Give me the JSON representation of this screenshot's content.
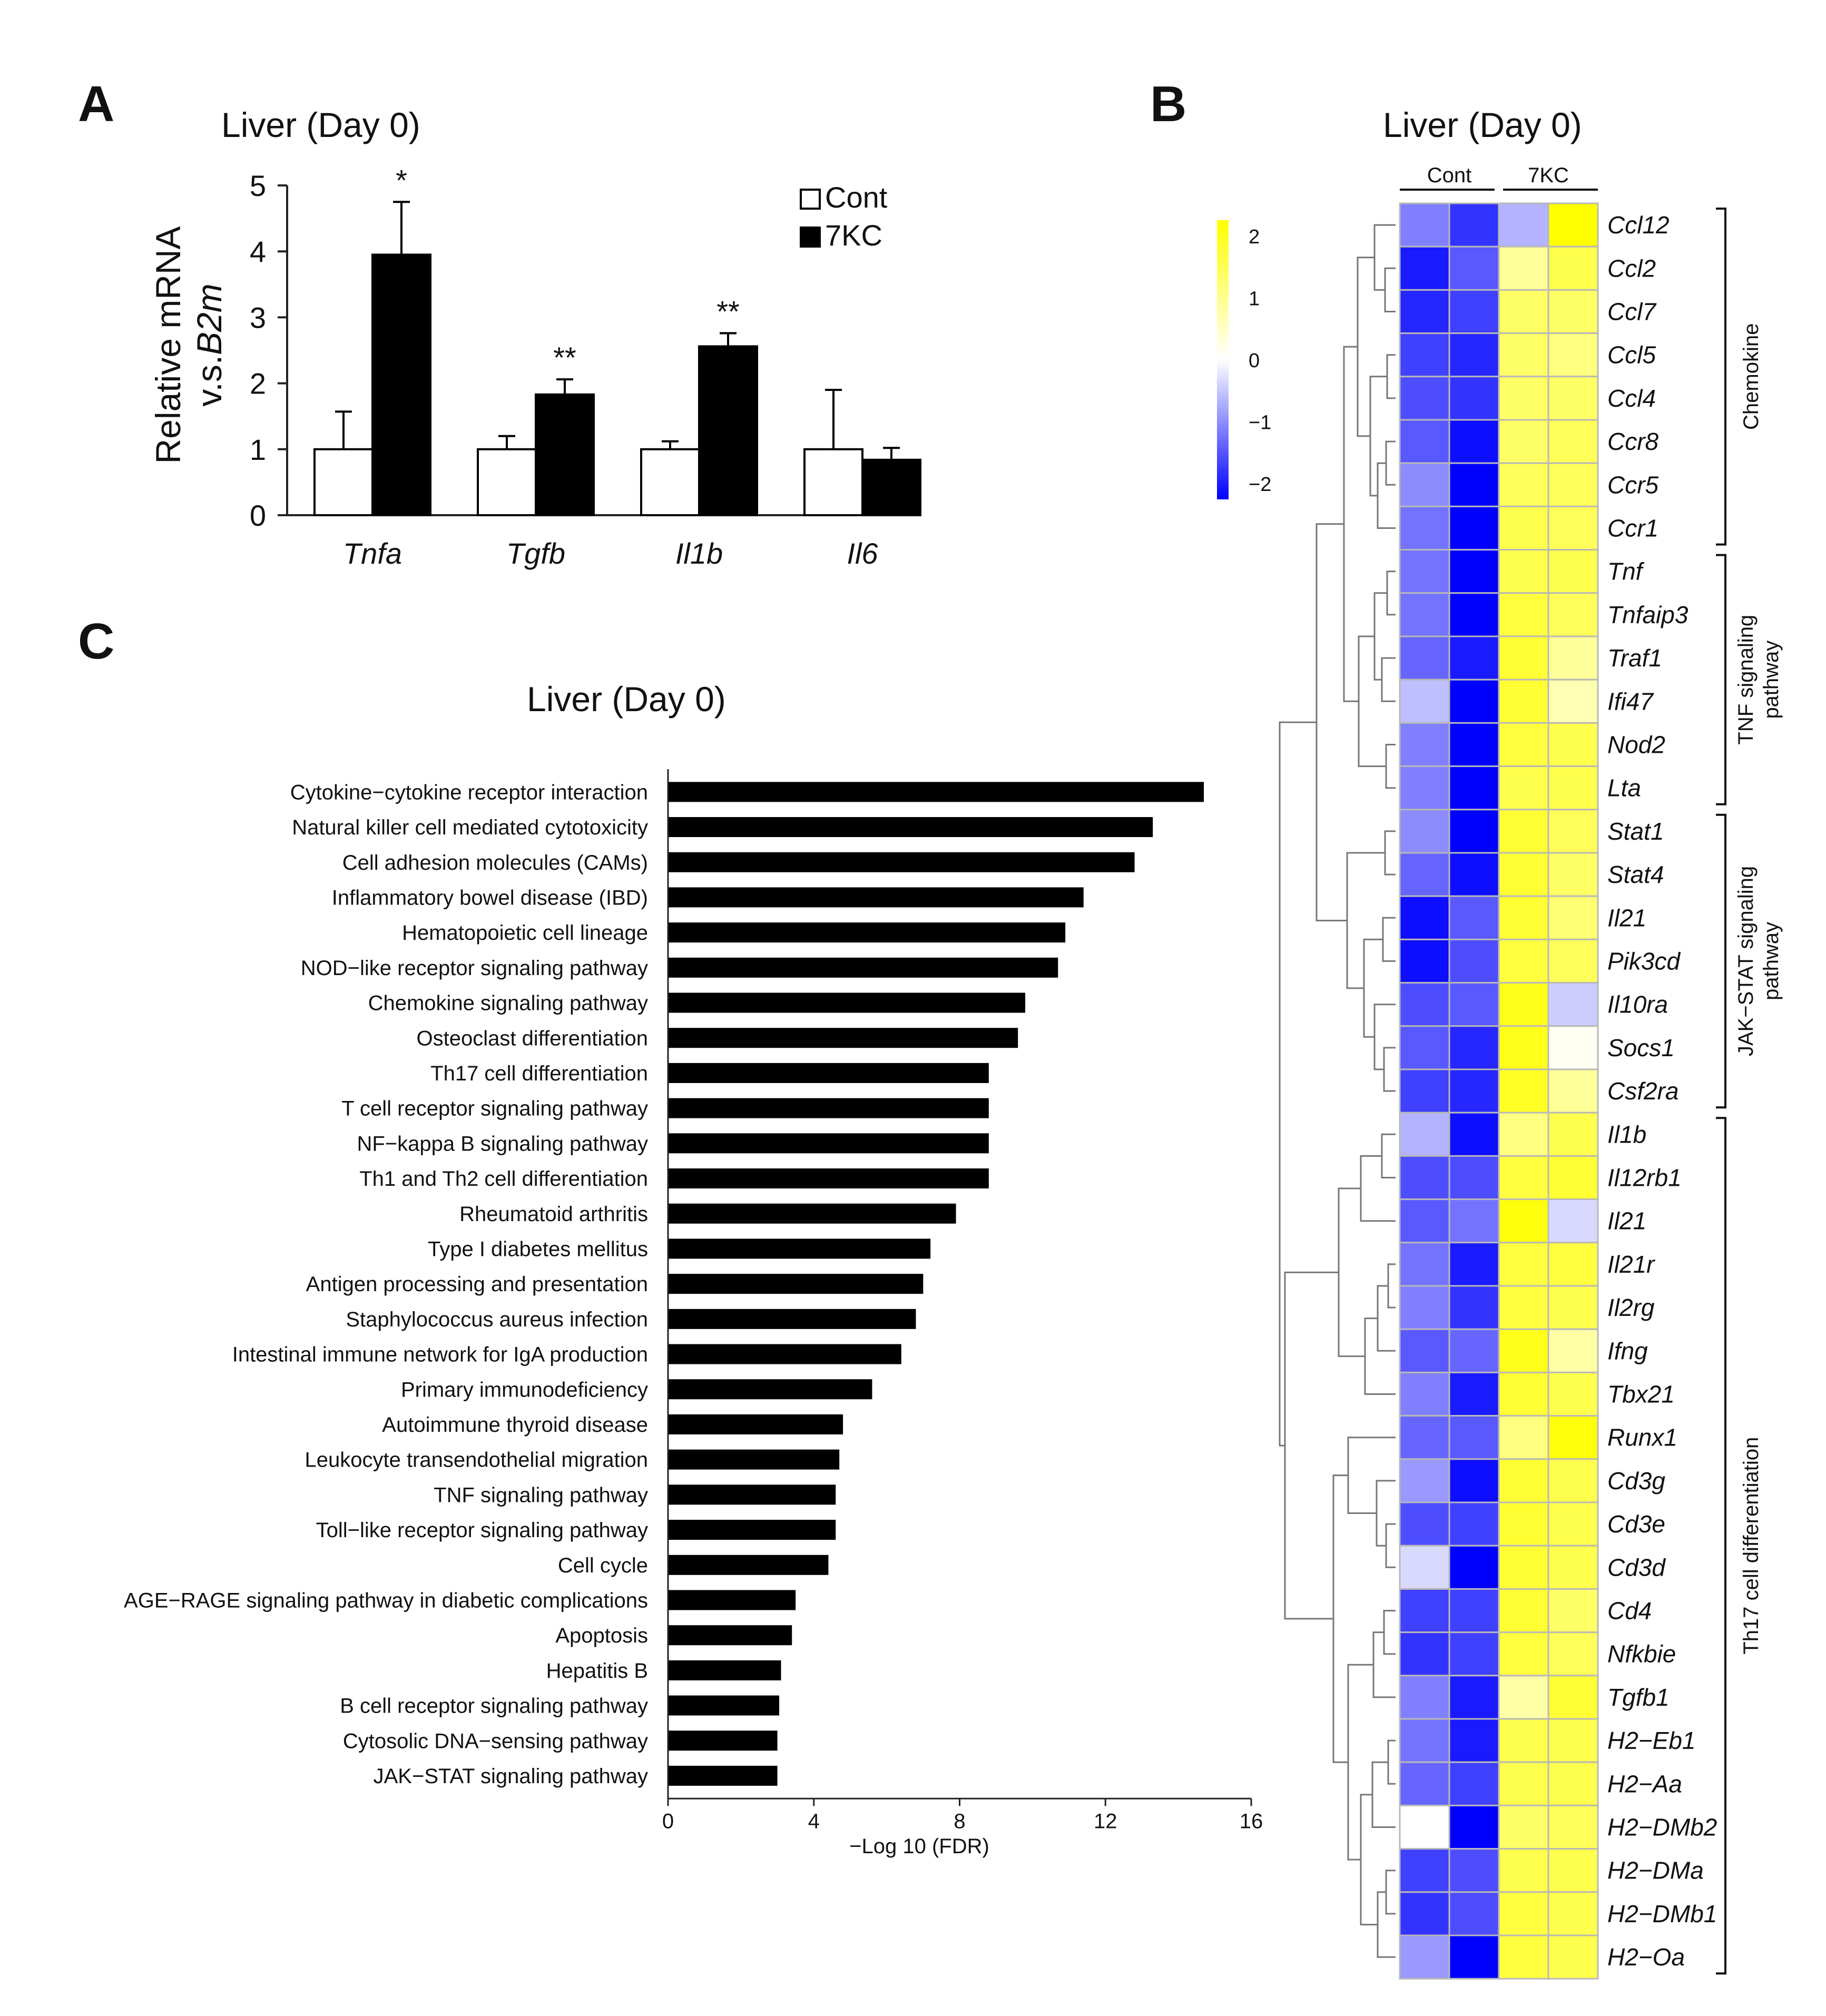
{
  "chart_data": [
    {
      "id": "A",
      "panel_label": "A",
      "type": "bar",
      "title": "Liver (Day 0)",
      "ylabel_line1": "Relative mRNA",
      "ylabel_line2": "v.s.",
      "ylabel_italic": "B2m",
      "ylim": [
        0,
        5
      ],
      "yticks": [
        "0",
        "1",
        "2",
        "3",
        "4",
        "5"
      ],
      "categories": [
        "Tnfa",
        "Tgfb",
        "Il1b",
        "Il6"
      ],
      "series": [
        {
          "name": "Cont",
          "color": "#ffffff",
          "values": [
            1.0,
            1.0,
            1.0,
            1.0
          ],
          "errors": [
            0.57,
            0.2,
            0.12,
            0.9
          ]
        },
        {
          "name": "7KC",
          "color": "#000000",
          "values": [
            3.95,
            1.83,
            2.56,
            0.84
          ],
          "errors": [
            0.8,
            0.23,
            0.2,
            0.18
          ]
        }
      ],
      "significance": [
        "*",
        "**",
        "**",
        ""
      ]
    },
    {
      "id": "B",
      "panel_label": "B",
      "type": "heatmap",
      "title": "Liver (Day 0)",
      "columns": [
        "Cont",
        "Cont",
        "7KC",
        "7KC"
      ],
      "group_labels": [
        "Cont",
        "7KC"
      ],
      "colorbar_ticks": [
        "2",
        "1",
        "0",
        "−1",
        "−2"
      ],
      "colorbar_colors": [
        "#ffff00",
        "#0000ff"
      ],
      "genes": [
        "Ccl12",
        "Ccl2",
        "Ccl7",
        "Ccl5",
        "Ccl4",
        "Ccr8",
        "Ccr5",
        "Ccr1",
        "Tnf",
        "Tnfaip3",
        "Traf1",
        "Ifi47",
        "Nod2",
        "Lta",
        "Stat1",
        "Stat4",
        "Il21",
        "Pik3cd",
        "Il10ra",
        "Socs1",
        "Csf2ra",
        "Il1b",
        "Il12rb1",
        "Il21",
        "Il21r",
        "Il2rg",
        "Ifng",
        "Tbx21",
        "Runx1",
        "Cd3g",
        "Cd3e",
        "Cd3d",
        "Cd4",
        "Nfkbie",
        "Tgfb1",
        "H2−Eb1",
        "H2−Aa",
        "H2−DMb2",
        "H2−DMa",
        "H2−DMb1",
        "H2−Oa"
      ],
      "values": [
        [
          -1.0,
          -1.6,
          -0.6,
          2.0
        ],
        [
          -1.8,
          -1.3,
          0.8,
          1.4
        ],
        [
          -1.7,
          -1.5,
          1.2,
          1.2
        ],
        [
          -1.5,
          -1.7,
          1.2,
          1.0
        ],
        [
          -1.4,
          -1.6,
          1.2,
          1.2
        ],
        [
          -1.3,
          -1.9,
          1.2,
          1.3
        ],
        [
          -0.9,
          -2.0,
          1.3,
          1.3
        ],
        [
          -1.1,
          -2.0,
          1.4,
          1.3
        ],
        [
          -1.1,
          -2.0,
          1.4,
          1.4
        ],
        [
          -1.1,
          -2.0,
          1.5,
          1.3
        ],
        [
          -1.2,
          -1.8,
          1.6,
          0.8
        ],
        [
          -0.5,
          -2.0,
          1.6,
          0.6
        ],
        [
          -1.0,
          -2.0,
          1.5,
          1.4
        ],
        [
          -1.0,
          -2.0,
          1.4,
          1.4
        ],
        [
          -0.9,
          -2.0,
          1.6,
          1.3
        ],
        [
          -1.2,
          -1.9,
          1.6,
          1.2
        ],
        [
          -1.9,
          -1.3,
          1.6,
          1.1
        ],
        [
          -1.9,
          -1.4,
          1.5,
          1.3
        ],
        [
          -1.4,
          -1.3,
          1.8,
          -0.4
        ],
        [
          -1.3,
          -1.7,
          1.8,
          0.1
        ],
        [
          -1.5,
          -1.7,
          1.7,
          0.8
        ],
        [
          -0.6,
          -1.9,
          1.0,
          1.4
        ],
        [
          -1.4,
          -1.4,
          1.5,
          1.6
        ],
        [
          -1.3,
          -1.1,
          1.9,
          -0.3
        ],
        [
          -1.1,
          -1.8,
          1.5,
          1.5
        ],
        [
          -1.0,
          -1.6,
          1.5,
          1.4
        ],
        [
          -1.3,
          -1.2,
          1.8,
          0.7
        ],
        [
          -1.0,
          -1.8,
          1.6,
          1.4
        ],
        [
          -1.2,
          -1.3,
          1.0,
          1.9
        ],
        [
          -0.8,
          -1.9,
          1.6,
          1.4
        ],
        [
          -1.4,
          -1.5,
          1.6,
          1.4
        ],
        [
          -0.3,
          -2.0,
          1.6,
          1.4
        ],
        [
          -1.5,
          -1.5,
          1.6,
          1.2
        ],
        [
          -1.6,
          -1.5,
          1.5,
          1.3
        ],
        [
          -1.0,
          -1.8,
          0.7,
          1.6
        ],
        [
          -1.1,
          -1.8,
          1.4,
          1.4
        ],
        [
          -1.2,
          -1.5,
          1.4,
          1.4
        ],
        [
          0.0,
          -2.0,
          1.2,
          1.3
        ],
        [
          -1.5,
          -1.4,
          1.4,
          1.4
        ],
        [
          -1.6,
          -1.4,
          1.5,
          1.4
        ],
        [
          -0.8,
          -2.0,
          1.5,
          1.4
        ]
      ],
      "pathway_groups": [
        {
          "label": "Chemokine",
          "start": 0,
          "end": 7
        },
        {
          "label_line1": "TNF signaling",
          "label_line2": "pathway",
          "start": 8,
          "end": 13
        },
        {
          "label_line1": "JAK−STAT signaling",
          "label_line2": "pathway",
          "start": 14,
          "end": 20
        },
        {
          "label": "Th17 cell differentiation",
          "start": 21,
          "end": 40
        }
      ]
    },
    {
      "id": "C",
      "panel_label": "C",
      "type": "bar",
      "orientation": "horizontal",
      "title": "Liver (Day 0)",
      "xlabel": "−Log 10 (FDR)",
      "xlim": [
        0,
        16
      ],
      "xticks": [
        "0",
        "4",
        "8",
        "12",
        "16"
      ],
      "categories": [
        "Cytokine−cytokine receptor interaction",
        "Natural killer cell mediated cytotoxicity",
        "Cell adhesion molecules (CAMs)",
        "Inflammatory bowel disease (IBD)",
        "Hematopoietic cell lineage",
        "NOD−like receptor signaling pathway",
        "Chemokine signaling pathway",
        "Osteoclast differentiation",
        "Th17 cell differentiation",
        "T cell receptor signaling pathway",
        "NF−kappa B signaling pathway",
        "Th1 and Th2 cell differentiation",
        "Rheumatoid arthritis",
        "Type I diabetes mellitus",
        "Antigen processing and presentation",
        "Staphylococcus aureus infection",
        "Intestinal immune network for IgA production",
        "Primary immunodeficiency",
        "Autoimmune thyroid disease",
        "Leukocyte transendothelial migration",
        "TNF signaling pathway",
        "Toll−like receptor signaling pathway",
        "Cell cycle",
        "AGE−RAGE signaling pathway in diabetic complications",
        "Apoptosis",
        "Hepatitis B",
        "B cell receptor signaling pathway",
        "Cytosolic DNA−sensing pathway",
        "JAK−STAT  signaling pathway"
      ],
      "values": [
        14.7,
        13.3,
        12.8,
        11.4,
        10.9,
        10.7,
        9.8,
        9.6,
        8.8,
        8.8,
        8.8,
        8.8,
        7.9,
        7.2,
        7.0,
        6.8,
        6.4,
        5.6,
        4.8,
        4.7,
        4.6,
        4.6,
        4.4,
        3.5,
        3.4,
        3.1,
        3.05,
        3.0,
        3.0
      ]
    }
  ]
}
